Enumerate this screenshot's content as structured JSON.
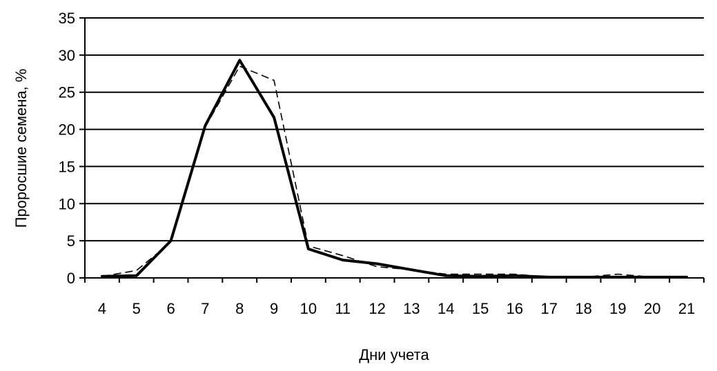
{
  "chart_data": {
    "type": "line",
    "title": "",
    "xlabel": "Дни учета",
    "ylabel": "Проросшие семена, %",
    "categories": [
      "4",
      "5",
      "6",
      "7",
      "8",
      "9",
      "10",
      "11",
      "12",
      "13",
      "14",
      "15",
      "16",
      "17",
      "18",
      "19",
      "20",
      "21"
    ],
    "x": [
      4,
      5,
      6,
      7,
      8,
      9,
      10,
      11,
      12,
      13,
      14,
      15,
      16,
      17,
      18,
      19,
      20,
      21
    ],
    "ylim": [
      0,
      35
    ],
    "yticks": [
      0,
      5,
      10,
      15,
      20,
      25,
      30,
      35
    ],
    "grid": true,
    "legend": "none",
    "series": [
      {
        "style": "solid-thick",
        "color": "#000000",
        "values": [
          0.2,
          0.3,
          5.0,
          20.5,
          29.3,
          21.6,
          3.9,
          2.4,
          1.9,
          1.1,
          0.3,
          0.2,
          0.3,
          0.1,
          0.1,
          0.1,
          0.1,
          0.1
        ]
      },
      {
        "style": "dashed",
        "color": "#000000",
        "values": [
          0.2,
          1.0,
          4.8,
          20.3,
          28.5,
          26.6,
          4.3,
          3.0,
          1.5,
          1.1,
          0.5,
          0.5,
          0.5,
          0.1,
          0.1,
          0.5,
          0.1,
          0.1
        ]
      }
    ]
  }
}
